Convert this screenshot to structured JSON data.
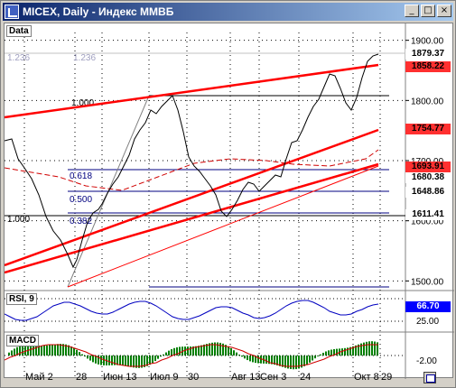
{
  "window": {
    "title": "MICEX, Daily - Индекс ММВБ",
    "icon": "chart-icon"
  },
  "titlebar_buttons": {
    "minimize": "_",
    "maximize": "□",
    "close": "×"
  },
  "panels": {
    "main_label": "Data",
    "rsi_label": "RSI, 9",
    "macd_label": "MACD"
  },
  "price_axis": {
    "ticks": [
      "1900.00",
      "1800.00",
      "1700.00",
      "1600.00",
      "1500.00"
    ],
    "rsi_ticks": [
      "25.00"
    ],
    "macd_ticks": [
      "-2.00"
    ]
  },
  "price_tags": [
    {
      "value": "1879.37",
      "bg": "#ffffff",
      "fg": "#000000"
    },
    {
      "value": "1858.22",
      "bg": "#ff3030",
      "fg": "#000000"
    },
    {
      "value": "1754.77",
      "bg": "#ff3030",
      "fg": "#000000"
    },
    {
      "value": "1693.91",
      "bg": "#ff3030",
      "fg": "#000000"
    },
    {
      "value": "1680.38",
      "bg": "#ffffff",
      "fg": "#000000"
    },
    {
      "value": "1648.86",
      "bg": "#ffffff",
      "fg": "#000000"
    },
    {
      "value": "1611.41",
      "bg": "#ffffff",
      "fg": "#000000"
    }
  ],
  "rsi_tag": {
    "value": "66.70",
    "bg": "#0000ff",
    "fg": "#ffffff"
  },
  "fib_labels": {
    "left_1236": "1.236",
    "mid_1236": "1.236",
    "f1000": "1.000",
    "f0618": "0.618",
    "f0500": "0.500",
    "f0382": "0.382",
    "left_1000": "1.000"
  },
  "x_axis": [
    "Май 2",
    "28",
    "Июн 13",
    "Июл 9",
    "30",
    "Авг 13",
    "Сен 3",
    "24",
    "Окт 8",
    "29"
  ],
  "colors": {
    "trend": "#ff0000",
    "price": "#000000",
    "rsi": "#0000c0",
    "macd_hist": "#008000",
    "grid": "#000000"
  },
  "chart_data": {
    "type": "line",
    "title": "MICEX, Daily - Индекс ММВБ",
    "xlabel": "",
    "ylabel": "",
    "x": [
      "Май 2",
      "28",
      "Июн 13",
      "Июл 9",
      "30",
      "Авг 13",
      "Сен 3",
      "24",
      "Окт 8",
      "29"
    ],
    "ylim": [
      1490,
      1910
    ],
    "series": [
      {
        "name": "",
        "values": [
          1740,
          1520,
          1660,
          1810,
          1680,
          1610,
          1660,
          1700,
          1850,
          1879
        ]
      }
    ]
  }
}
